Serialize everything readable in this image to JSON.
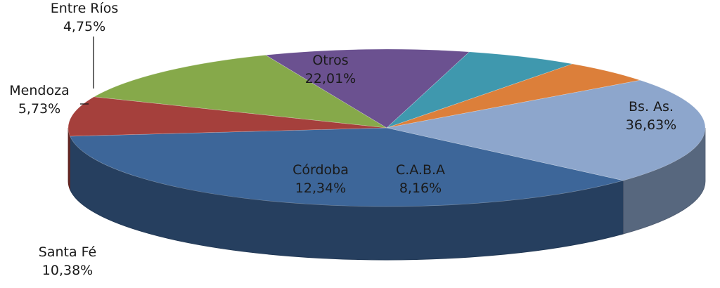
{
  "chart_data": {
    "type": "pie",
    "style": "3d",
    "title": "",
    "slices": [
      {
        "label": "Bs. As.",
        "value": 36.63,
        "value_label": "36,63%",
        "color": "#3D6699"
      },
      {
        "label": "C.A.B.A",
        "value": 8.16,
        "value_label": "8,16%",
        "color": "#A5403C"
      },
      {
        "label": "Córdoba",
        "value": 12.34,
        "value_label": "12,34%",
        "color": "#86A94A"
      },
      {
        "label": "Santa Fé",
        "value": 10.38,
        "value_label": "10,38%",
        "color": "#6B5190"
      },
      {
        "label": "Mendoza",
        "value": 5.73,
        "value_label": "5,73%",
        "color": "#3F98AE"
      },
      {
        "label": "Entre Ríos",
        "value": 4.75,
        "value_label": "4,75%",
        "color": "#DC7F3A"
      },
      {
        "label": "Otros",
        "value": 22.01,
        "value_label": "22,01%",
        "color": "#8DA6CC"
      }
    ]
  }
}
